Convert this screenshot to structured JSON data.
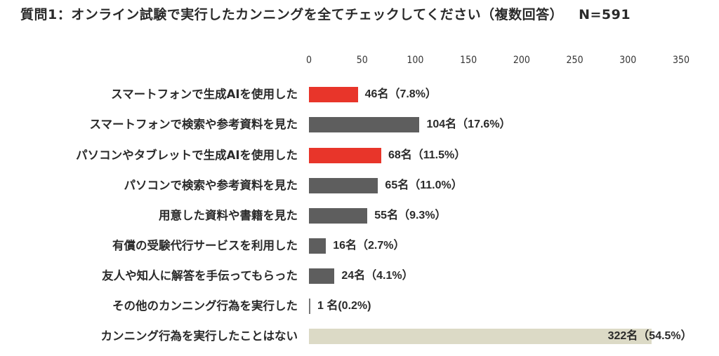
{
  "header": {
    "title": "質問1：オンライン試験で実行したカンニングを全てチェックしてください（複数回答）",
    "sample_size": "N=591"
  },
  "colors": {
    "highlight": "#e8352a",
    "default": "#5e5e5e",
    "none": "#dcdac6"
  },
  "chart_data": {
    "type": "bar",
    "orientation": "horizontal",
    "title": "質問1：オンライン試験で実行したカンニングを全てチェックしてください（複数回答） N=591",
    "xlabel": "",
    "ylabel": "",
    "xlim": [
      0,
      350
    ],
    "xticks": [
      "0",
      "50",
      "100",
      "150",
      "200",
      "250",
      "300",
      "350"
    ],
    "grid": false,
    "categories": [
      "スマートフォンで生成AIを使用した",
      "スマートフォンで検索や参考資料を見た",
      "パソコンやタブレットで生成AIを使用した",
      "パソコンで検索や参考資料を見た",
      "用意した資料や書籍を見た",
      "有償の受験代行サービスを利用した",
      "友人や知人に解答を手伝ってもらった",
      "その他のカンニング行為を実行した",
      "カンニング行為を実行したことはない"
    ],
    "values": [
      46,
      104,
      68,
      65,
      55,
      16,
      24,
      1,
      322
    ],
    "percentages": [
      7.8,
      17.6,
      11.5,
      11.0,
      9.3,
      2.7,
      4.1,
      0.2,
      54.5
    ],
    "labels": [
      "46名（7.8%）",
      "104名（17.6%）",
      "68名（11.5%）",
      "65名（11.0%）",
      "55名（9.3%）",
      "16名（2.7%）",
      "24名（4.1%）",
      "1 名(0.2%)",
      "322名（54.5%）"
    ],
    "bar_colors": [
      "highlight",
      "default",
      "highlight",
      "default",
      "default",
      "default",
      "default",
      "default",
      "none"
    ]
  }
}
